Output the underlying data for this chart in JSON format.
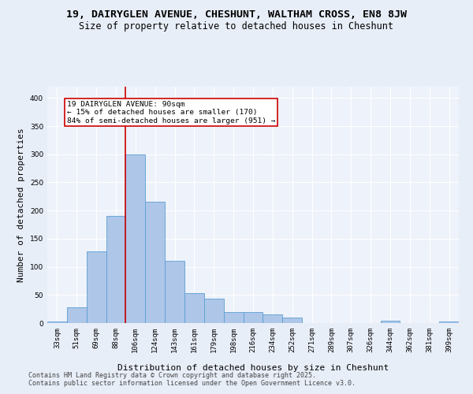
{
  "title1": "19, DAIRYGLEN AVENUE, CHESHUNT, WALTHAM CROSS, EN8 8JW",
  "title2": "Size of property relative to detached houses in Cheshunt",
  "xlabel": "Distribution of detached houses by size in Cheshunt",
  "ylabel": "Number of detached properties",
  "categories": [
    "33sqm",
    "51sqm",
    "69sqm",
    "88sqm",
    "106sqm",
    "124sqm",
    "143sqm",
    "161sqm",
    "179sqm",
    "198sqm",
    "216sqm",
    "234sqm",
    "252sqm",
    "271sqm",
    "289sqm",
    "307sqm",
    "326sqm",
    "344sqm",
    "362sqm",
    "381sqm",
    "399sqm"
  ],
  "values": [
    3,
    28,
    128,
    190,
    300,
    215,
    110,
    53,
    44,
    20,
    20,
    15,
    10,
    0,
    0,
    0,
    0,
    4,
    0,
    0,
    3
  ],
  "bar_color": "#aec6e8",
  "bar_edge_color": "#5a9fd4",
  "vline_x_idx": 3,
  "vline_color": "#cc0000",
  "annotation_text": "19 DAIRYGLEN AVENUE: 90sqm\n← 15% of detached houses are smaller (170)\n84% of semi-detached houses are larger (951) →",
  "annotation_box_color": "#ffffff",
  "annotation_box_edge": "#cc0000",
  "footer1": "Contains HM Land Registry data © Crown copyright and database right 2025.",
  "footer2": "Contains public sector information licensed under the Open Government Licence v3.0.",
  "bg_color": "#e8eef8",
  "plot_bg_color": "#eef2fa",
  "ylim": [
    0,
    420
  ],
  "yticks": [
    0,
    50,
    100,
    150,
    200,
    250,
    300,
    350,
    400
  ],
  "title1_fontsize": 9.5,
  "title2_fontsize": 8.5,
  "ylabel_fontsize": 8,
  "xlabel_fontsize": 8,
  "tick_fontsize": 6.5,
  "footer_fontsize": 6,
  "annot_fontsize": 6.8
}
